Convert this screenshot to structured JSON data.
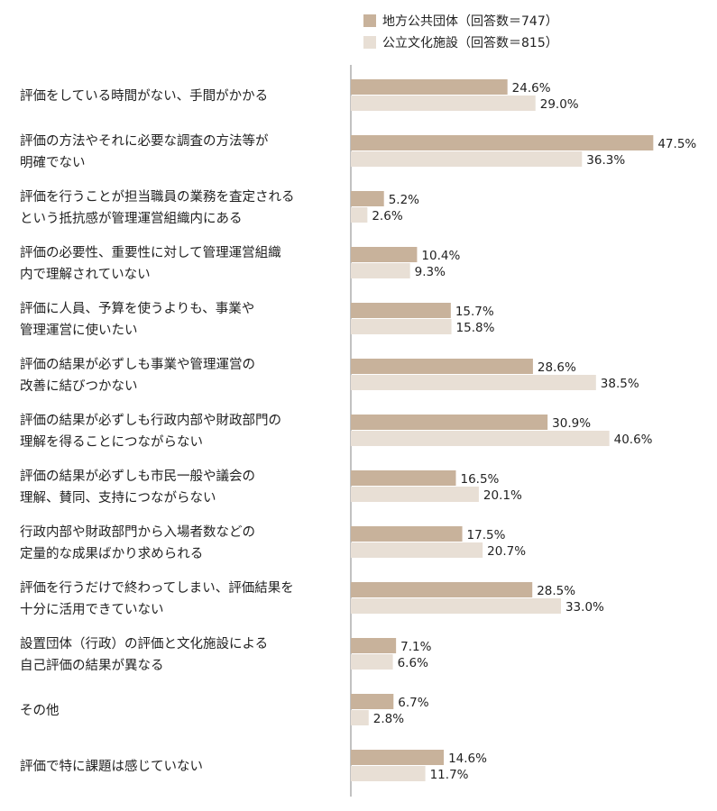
{
  "chart_data": {
    "type": "bar",
    "orientation": "horizontal",
    "grid": false,
    "legend_position": "top-right",
    "xlim": [
      0,
      50
    ],
    "categories": [
      [
        "評価をしている時間がない、手間がかかる"
      ],
      [
        "評価の方法やそれに必要な調査の方法等が",
        "明確でない"
      ],
      [
        "評価を行うことが担当職員の業務を査定される",
        "という抵抗感が管理運営組織内にある"
      ],
      [
        "評価の必要性、重要性に対して管理運営組織",
        "内で理解されていない"
      ],
      [
        "評価に人員、予算を使うよりも、事業や",
        "管理運営に使いたい"
      ],
      [
        "評価の結果が必ずしも事業や管理運営の",
        "改善に結びつかない"
      ],
      [
        "評価の結果が必ずしも行政内部や財政部門の",
        "理解を得ることにつながらない"
      ],
      [
        "評価の結果が必ずしも市民一般や議会の",
        "理解、賛同、支持につながらない"
      ],
      [
        "行政内部や財政部門から入場者数などの",
        "定量的な成果ばかり求められる"
      ],
      [
        "評価を行うだけで終わってしまい、評価結果を",
        "十分に活用できていない"
      ],
      [
        "設置団体（行政）の評価と文化施設による",
        "自己評価の結果が異なる"
      ],
      [
        "その他"
      ],
      [
        "評価で特に課題は感じていない"
      ]
    ],
    "series": [
      {
        "name": "地方公共団体（回答数＝747）",
        "color": "#c8b29b",
        "values": [
          24.6,
          47.5,
          5.2,
          10.4,
          15.7,
          28.6,
          30.9,
          16.5,
          17.5,
          28.5,
          7.1,
          6.7,
          14.6
        ],
        "labels": [
          "24.6%",
          "47.5%",
          "5.2%",
          "10.4%",
          "15.7%",
          "28.6%",
          "30.9%",
          "16.5%",
          "17.5%",
          "28.5%",
          "7.1%",
          "6.7%",
          "14.6%"
        ]
      },
      {
        "name": "公立文化施設（回答数＝815）",
        "color": "#e8dfd5",
        "values": [
          29.0,
          36.3,
          2.6,
          9.3,
          15.8,
          38.5,
          40.6,
          20.1,
          20.7,
          33.0,
          6.6,
          2.8,
          11.7
        ],
        "labels": [
          "29.0%",
          "36.3%",
          "2.6%",
          "9.3%",
          "15.8%",
          "38.5%",
          "40.6%",
          "20.1%",
          "20.7%",
          "33.0%",
          "6.6%",
          "2.8%",
          "11.7%"
        ]
      }
    ]
  }
}
